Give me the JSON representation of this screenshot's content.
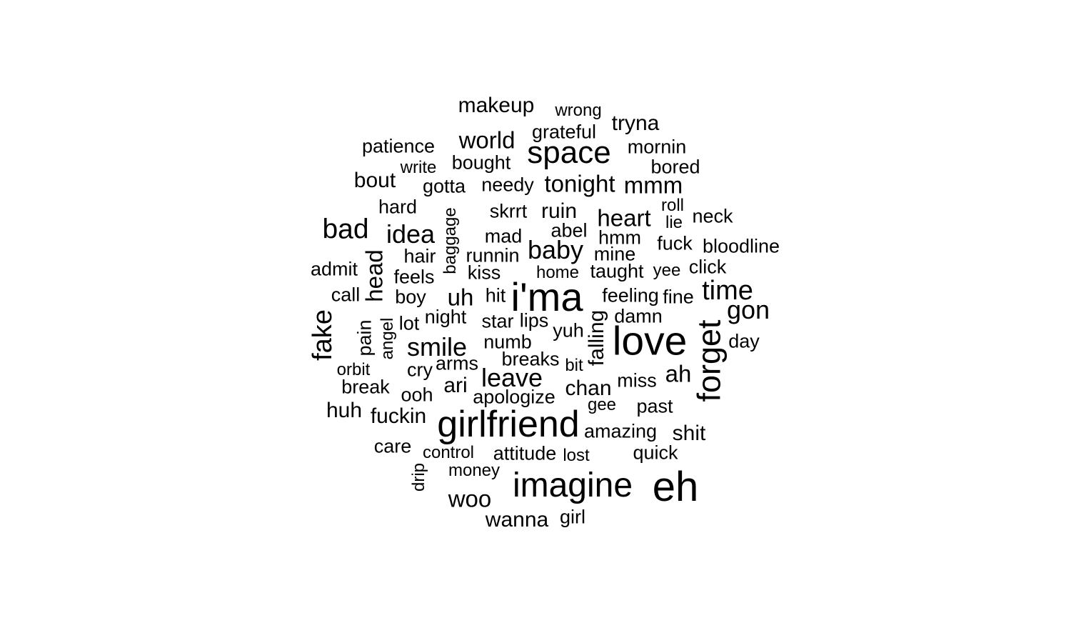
{
  "cloud": {
    "color": "#000000",
    "background": "#ffffff",
    "words": [
      {
        "text": "makeup",
        "rotated": false
      },
      {
        "text": "wrong",
        "rotated": false
      },
      {
        "text": "tryna",
        "rotated": false
      },
      {
        "text": "grateful",
        "rotated": false
      },
      {
        "text": "world",
        "rotated": false
      },
      {
        "text": "patience",
        "rotated": false
      },
      {
        "text": "space",
        "rotated": false
      },
      {
        "text": "mornin",
        "rotated": false
      },
      {
        "text": "bought",
        "rotated": false
      },
      {
        "text": "write",
        "rotated": false
      },
      {
        "text": "bored",
        "rotated": false
      },
      {
        "text": "bout",
        "rotated": false
      },
      {
        "text": "gotta",
        "rotated": false
      },
      {
        "text": "needy",
        "rotated": false
      },
      {
        "text": "tonight",
        "rotated": false
      },
      {
        "text": "mmm",
        "rotated": false
      },
      {
        "text": "hard",
        "rotated": false
      },
      {
        "text": "skrrt",
        "rotated": false
      },
      {
        "text": "ruin",
        "rotated": false
      },
      {
        "text": "heart",
        "rotated": false
      },
      {
        "text": "roll",
        "rotated": false
      },
      {
        "text": "neck",
        "rotated": false
      },
      {
        "text": "lie",
        "rotated": false
      },
      {
        "text": "bad",
        "rotated": false
      },
      {
        "text": "idea",
        "rotated": false
      },
      {
        "text": "baggage",
        "rotated": true
      },
      {
        "text": "mad",
        "rotated": false
      },
      {
        "text": "abel",
        "rotated": false
      },
      {
        "text": "hmm",
        "rotated": false
      },
      {
        "text": "fuck",
        "rotated": false
      },
      {
        "text": "bloodline",
        "rotated": false
      },
      {
        "text": "head",
        "rotated": true
      },
      {
        "text": "hair",
        "rotated": false
      },
      {
        "text": "runnin",
        "rotated": false
      },
      {
        "text": "baby",
        "rotated": false
      },
      {
        "text": "mine",
        "rotated": false
      },
      {
        "text": "admit",
        "rotated": false
      },
      {
        "text": "feels",
        "rotated": false
      },
      {
        "text": "kiss",
        "rotated": false
      },
      {
        "text": "home",
        "rotated": false
      },
      {
        "text": "taught",
        "rotated": false
      },
      {
        "text": "yee",
        "rotated": false
      },
      {
        "text": "click",
        "rotated": false
      },
      {
        "text": "call",
        "rotated": false
      },
      {
        "text": "boy",
        "rotated": false
      },
      {
        "text": "uh",
        "rotated": false
      },
      {
        "text": "hit",
        "rotated": false
      },
      {
        "text": "i'ma",
        "rotated": false
      },
      {
        "text": "feeling",
        "rotated": false
      },
      {
        "text": "fine",
        "rotated": false
      },
      {
        "text": "time",
        "rotated": false
      },
      {
        "text": "gon",
        "rotated": false
      },
      {
        "text": "fake",
        "rotated": true
      },
      {
        "text": "pain",
        "rotated": true
      },
      {
        "text": "angel",
        "rotated": true
      },
      {
        "text": "lot",
        "rotated": false
      },
      {
        "text": "night",
        "rotated": false
      },
      {
        "text": "star",
        "rotated": false
      },
      {
        "text": "lips",
        "rotated": false
      },
      {
        "text": "falling",
        "rotated": true
      },
      {
        "text": "damn",
        "rotated": false
      },
      {
        "text": "yuh",
        "rotated": false
      },
      {
        "text": "love",
        "rotated": false
      },
      {
        "text": "forget",
        "rotated": true
      },
      {
        "text": "day",
        "rotated": false
      },
      {
        "text": "smile",
        "rotated": false
      },
      {
        "text": "numb",
        "rotated": false
      },
      {
        "text": "breaks",
        "rotated": false
      },
      {
        "text": "bit",
        "rotated": false
      },
      {
        "text": "orbit",
        "rotated": false
      },
      {
        "text": "cry",
        "rotated": false
      },
      {
        "text": "arms",
        "rotated": false
      },
      {
        "text": "leave",
        "rotated": false
      },
      {
        "text": "miss",
        "rotated": false
      },
      {
        "text": "ah",
        "rotated": false
      },
      {
        "text": "break",
        "rotated": false
      },
      {
        "text": "ooh",
        "rotated": false
      },
      {
        "text": "ari",
        "rotated": false
      },
      {
        "text": "apologize",
        "rotated": false
      },
      {
        "text": "chan",
        "rotated": false
      },
      {
        "text": "gee",
        "rotated": false
      },
      {
        "text": "past",
        "rotated": false
      },
      {
        "text": "huh",
        "rotated": false
      },
      {
        "text": "fuckin",
        "rotated": false
      },
      {
        "text": "girlfriend",
        "rotated": false
      },
      {
        "text": "amazing",
        "rotated": false
      },
      {
        "text": "shit",
        "rotated": false
      },
      {
        "text": "care",
        "rotated": false
      },
      {
        "text": "control",
        "rotated": false
      },
      {
        "text": "attitude",
        "rotated": false
      },
      {
        "text": "lost",
        "rotated": false
      },
      {
        "text": "quick",
        "rotated": false
      },
      {
        "text": "drip",
        "rotated": true
      },
      {
        "text": "money",
        "rotated": false
      },
      {
        "text": "imagine",
        "rotated": false
      },
      {
        "text": "eh",
        "rotated": false
      },
      {
        "text": "woo",
        "rotated": false
      },
      {
        "text": "wanna",
        "rotated": false
      },
      {
        "text": "girl",
        "rotated": false
      }
    ]
  }
}
